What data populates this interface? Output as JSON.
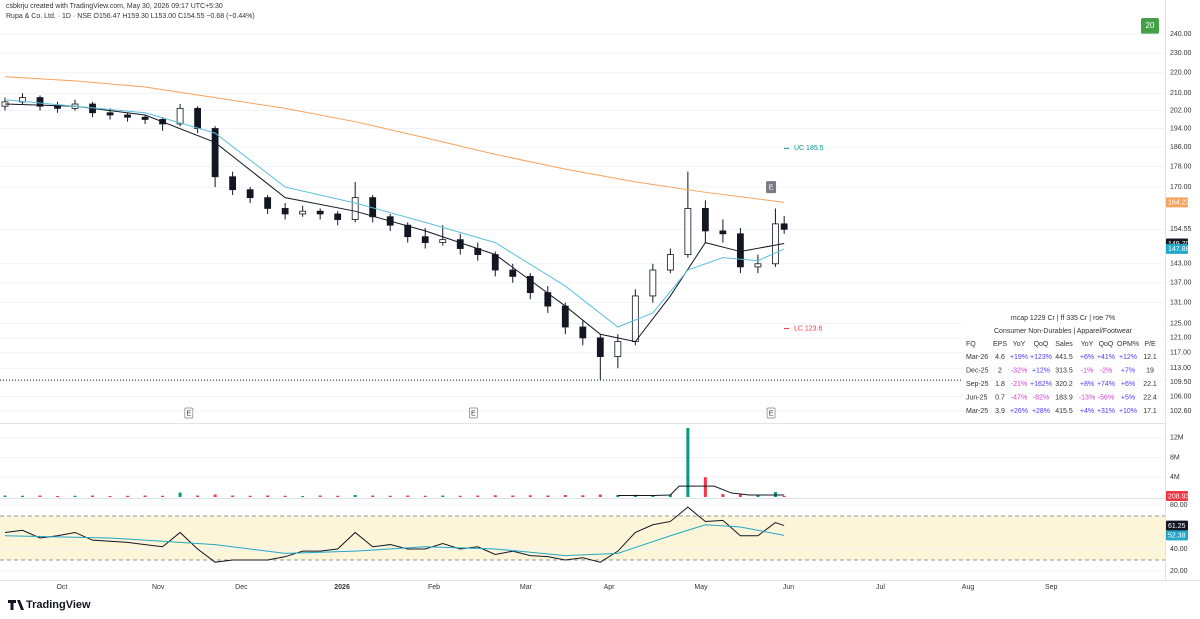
{
  "header": {
    "credit": "csbkrju created with TradingView.com, May 30, 2026 09:17 UTC+5:30",
    "symbol": "Rupa & Co. Ltd. · 1D · NSE",
    "ohlc": "O156.47 H159.30 L153.00 C154.55 −0.68 (−0.44%)"
  },
  "branding": "TradingView",
  "badge_top": "20",
  "chart_data": [
    {
      "type": "candlestick",
      "log": true,
      "ylim": [
        100.1,
        253.4
      ],
      "xlim": [
        0,
        265
      ],
      "x": [
        0,
        4,
        8,
        12,
        16,
        20,
        24,
        28,
        32,
        36,
        40,
        44,
        48,
        52,
        56,
        60,
        64,
        68,
        72,
        76,
        80,
        84,
        88,
        92,
        96,
        100,
        104,
        108,
        112,
        116,
        120,
        124,
        128,
        132,
        136,
        140,
        144,
        148,
        152,
        156,
        160,
        164,
        168,
        172,
        176,
        178
      ],
      "open": [
        204,
        206,
        208,
        204,
        203,
        205,
        201,
        200,
        199,
        198,
        196,
        203,
        194,
        174,
        169,
        166,
        162,
        160,
        161,
        160,
        158,
        166,
        159,
        156,
        152,
        150,
        151,
        148,
        146,
        141,
        139,
        134,
        130,
        124,
        121,
        116,
        120,
        133,
        141,
        146,
        162,
        154,
        153,
        142,
        143,
        156.47
      ],
      "high": [
        208,
        210,
        209,
        206,
        207,
        206,
        203,
        201,
        200,
        199,
        205,
        204,
        195,
        176,
        170,
        167,
        164,
        163,
        162,
        161,
        172,
        167,
        160,
        157,
        155,
        156,
        153,
        150,
        147,
        143,
        140,
        136,
        131,
        126,
        122,
        122,
        135,
        143,
        148,
        176,
        165,
        158,
        155,
        146,
        162,
        159.3
      ],
      "low": [
        202,
        205,
        202,
        201,
        202,
        199,
        198,
        197,
        196,
        193,
        195,
        192,
        170,
        167,
        164,
        160,
        158,
        159,
        158,
        156,
        157,
        157,
        154,
        150,
        148,
        149,
        146,
        144,
        139,
        137,
        132,
        128,
        122,
        119,
        110,
        113,
        119,
        131,
        140,
        145,
        150,
        150,
        140,
        140,
        142,
        153
      ],
      "close": [
        206,
        208,
        204,
        203,
        205,
        201,
        200,
        199,
        198,
        196,
        203,
        194,
        174,
        169,
        166,
        162,
        160,
        161,
        160,
        158,
        166,
        159,
        156,
        152,
        150,
        151,
        148,
        146,
        141,
        139,
        134,
        130,
        124,
        121,
        116,
        120,
        133,
        141,
        146,
        162,
        154,
        153,
        142,
        143,
        156.47,
        154.55
      ],
      "up_color": "#ffffff",
      "down_color": "#131722",
      "series": [
        {
          "color": "#f7a35c",
          "x": [
            0,
            16,
            32,
            48,
            64,
            80,
            96,
            112,
            128,
            144,
            160,
            178
          ],
          "values": [
            218,
            216,
            213,
            208,
            203,
            197,
            190,
            183,
            177,
            172,
            168,
            164.23
          ]
        },
        {
          "color": "#131722",
          "x": [
            0,
            16,
            32,
            48,
            64,
            80,
            96,
            112,
            128,
            136,
            144,
            152,
            160,
            168,
            178
          ],
          "values": [
            205,
            204,
            200,
            188,
            166,
            161,
            154,
            146,
            130,
            122,
            120,
            133,
            150,
            147,
            149.7
          ]
        },
        {
          "color": "#5bc0de",
          "x": [
            0,
            16,
            32,
            48,
            64,
            80,
            96,
            112,
            128,
            140,
            148,
            156,
            164,
            172,
            178
          ],
          "values": [
            207,
            204,
            201,
            192,
            170,
            164,
            157,
            150,
            136,
            124,
            128,
            141,
            145,
            144,
            147.88
          ]
        }
      ],
      "yticks": [
        {
          "value": 240,
          "label": "240.00"
        },
        {
          "value": 230,
          "label": "230.00"
        },
        {
          "value": 220,
          "label": "220.00"
        },
        {
          "value": 210,
          "label": "210.00"
        },
        {
          "value": 202,
          "label": "202.00"
        },
        {
          "value": 194,
          "label": "194.00"
        },
        {
          "value": 186,
          "label": "186.00"
        },
        {
          "value": 178,
          "label": "178.00"
        },
        {
          "value": 170,
          "label": "170.00"
        },
        {
          "value": 154.55,
          "label": "154.55"
        },
        {
          "value": 143,
          "label": "143.00"
        },
        {
          "value": 137,
          "label": "137.00"
        },
        {
          "value": 131,
          "label": "131.00"
        },
        {
          "value": 125,
          "label": "125.00"
        },
        {
          "value": 121,
          "label": "121.00"
        },
        {
          "value": 117,
          "label": "117.00"
        },
        {
          "value": 113,
          "label": "113.00"
        },
        {
          "value": 109.5,
          "label": "109.50"
        },
        {
          "value": 106,
          "label": "106.00"
        },
        {
          "value": 102.6,
          "label": "102.60"
        }
      ],
      "price_labels": [
        {
          "value": 164.23,
          "label": "164.23",
          "color": "#f7a35c"
        },
        {
          "value": 149.7,
          "label": "149.70",
          "color": "#131722"
        },
        {
          "value": 147.88,
          "label": "147.88",
          "color": "#22a7c9"
        }
      ],
      "annotations": [
        {
          "text": "UC 185.5",
          "value": 185.5,
          "color": "#089981"
        },
        {
          "text": "LC 123.6",
          "value": 123.6,
          "color": "#f23645"
        }
      ],
      "hline": 110,
      "events": [
        {
          "x": 42,
          "label": "E"
        },
        {
          "x": 107,
          "label": "E"
        },
        {
          "x": 175,
          "label": "E"
        }
      ],
      "event_top": {
        "x": 175,
        "value": 170,
        "label": "E"
      }
    },
    {
      "type": "bar",
      "ylim": [
        0,
        14600000
      ],
      "xlim": [
        0,
        265
      ],
      "x": [
        0,
        4,
        8,
        12,
        16,
        20,
        24,
        28,
        32,
        36,
        40,
        44,
        48,
        52,
        56,
        60,
        64,
        68,
        72,
        76,
        80,
        84,
        88,
        92,
        96,
        100,
        104,
        108,
        112,
        116,
        120,
        124,
        128,
        132,
        136,
        140,
        144,
        148,
        152,
        156,
        160,
        164,
        168,
        172,
        176,
        178
      ],
      "values": [
        300000,
        250000,
        300000,
        200000,
        250000,
        300000,
        200000,
        250000,
        300000,
        250000,
        900000,
        300000,
        500000,
        300000,
        250000,
        300000,
        250000,
        200000,
        300000,
        250000,
        400000,
        300000,
        250000,
        300000,
        250000,
        300000,
        250000,
        300000,
        350000,
        300000,
        350000,
        300000,
        400000,
        350000,
        500000,
        400000,
        450000,
        400000,
        500000,
        14000000,
        4000000,
        600000,
        500000,
        400000,
        1000000,
        208930
      ],
      "up_color": "#089981",
      "down_color": "#f23645",
      "series": [
        {
          "color": "#131722",
          "x": [
            140,
            148,
            152,
            154,
            162,
            166,
            170,
            178
          ],
          "values": [
            300000,
            300000,
            400000,
            2200000,
            2200000,
            800000,
            400000,
            400000
          ]
        }
      ],
      "yticks": [
        {
          "value": 12000000,
          "label": "12M"
        },
        {
          "value": 8000000,
          "label": "8M"
        },
        {
          "value": 4000000,
          "label": "4M"
        }
      ],
      "price_labels": [
        {
          "value": 208930,
          "label": "208.93K",
          "color": "#f23645"
        }
      ]
    },
    {
      "type": "line",
      "ylim": [
        11.8,
        84.5
      ],
      "xlim": [
        0,
        265
      ],
      "band": [
        30,
        70
      ],
      "band_color": "#fdf5d8",
      "series": [
        {
          "color": "#131722",
          "x": [
            0,
            4,
            8,
            12,
            16,
            20,
            24,
            28,
            32,
            36,
            40,
            44,
            48,
            52,
            56,
            60,
            64,
            68,
            72,
            76,
            80,
            84,
            88,
            92,
            96,
            100,
            104,
            108,
            112,
            116,
            120,
            124,
            128,
            132,
            136,
            140,
            144,
            148,
            152,
            156,
            160,
            164,
            168,
            172,
            176,
            178
          ],
          "values": [
            55,
            57,
            50,
            52,
            55,
            48,
            47,
            46,
            44,
            42,
            55,
            40,
            28,
            30,
            30,
            30,
            33,
            38,
            38,
            40,
            55,
            42,
            44,
            40,
            40,
            45,
            40,
            42,
            35,
            38,
            34,
            33,
            30,
            32,
            28,
            38,
            55,
            62,
            65,
            78,
            65,
            66,
            52,
            52,
            64,
            61.25
          ]
        },
        {
          "color": "#22a7c9",
          "x": [
            0,
            24,
            48,
            64,
            80,
            96,
            112,
            128,
            140,
            152,
            160,
            168,
            178
          ],
          "values": [
            52,
            50,
            44,
            36,
            38,
            42,
            40,
            34,
            36,
            52,
            62,
            60,
            52.38
          ]
        }
      ],
      "yticks": [
        {
          "value": 80,
          "label": "80.00"
        },
        {
          "value": 40,
          "label": "40.00"
        },
        {
          "value": 20,
          "label": "20.00"
        }
      ],
      "price_labels": [
        {
          "value": 61.25,
          "label": "61.25",
          "color": "#131722"
        },
        {
          "value": 52.38,
          "label": "52.38",
          "color": "#22a7c9"
        }
      ],
      "xticks": [
        {
          "value": 13,
          "label": "Oct"
        },
        {
          "value": 35,
          "label": "Nov"
        },
        {
          "value": 54,
          "label": "Dec"
        },
        {
          "value": 77,
          "label": "2026"
        },
        {
          "value": 98,
          "label": "Feb"
        },
        {
          "value": 119,
          "label": "Mar"
        },
        {
          "value": 138,
          "label": "Apr"
        },
        {
          "value": 159,
          "label": "May"
        },
        {
          "value": 179,
          "label": "Jun"
        },
        {
          "value": 200,
          "label": "Jul"
        },
        {
          "value": 220,
          "label": "Aug"
        },
        {
          "value": 239,
          "label": "Sep"
        }
      ]
    }
  ],
  "table": {
    "line1": "mcap 1229 Cr  |  ff 335 Cr  |  roe 7%",
    "line2": "Consumer Non-Durables  |  Apparel/Footwear",
    "columns": [
      "FQ",
      "EPS",
      "YoY",
      "QoQ",
      "Sales",
      "YoY",
      "QoQ",
      "OPM%",
      "P/E"
    ],
    "rows": [
      [
        "Mar-26",
        "4.6",
        "+19%",
        "+123%",
        "441.5",
        "+6%",
        "+41%",
        "+12%",
        "12.1"
      ],
      [
        "Dec-25",
        "2",
        "-32%",
        "+12%",
        "313.5",
        "-1%",
        "-2%",
        "+7%",
        "19"
      ],
      [
        "Sep-25",
        "1.8",
        "-21%",
        "+162%",
        "320.2",
        "+8%",
        "+74%",
        "+6%",
        "22.1"
      ],
      [
        "Jun-25",
        "0.7",
        "-47%",
        "-82%",
        "183.9",
        "-13%",
        "-56%",
        "+5%",
        "22.4"
      ],
      [
        "Mar-25",
        "3.9",
        "+26%",
        "+28%",
        "415.5",
        "+4%",
        "+31%",
        "+10%",
        "17.1"
      ]
    ]
  }
}
